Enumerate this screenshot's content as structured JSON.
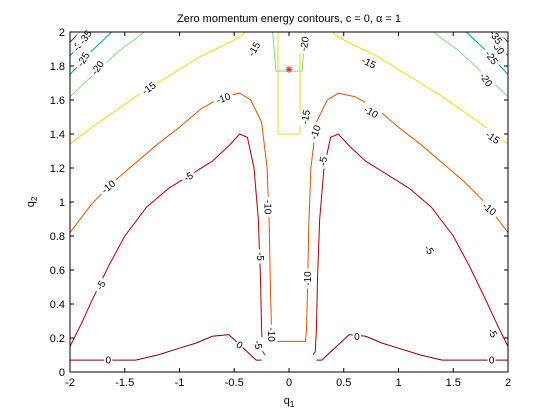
{
  "chart_data": {
    "type": "line",
    "title": "Zero momentum energy contours, c = 0, α = 1",
    "xlabel": "q1",
    "ylabel": "q2",
    "xlim": [
      -2,
      2
    ],
    "ylim": [
      0,
      2
    ],
    "xticks": [
      "-2",
      "-1.5",
      "-1",
      "-0.5",
      "0",
      "0.5",
      "1",
      "1.5",
      "2"
    ],
    "yticks": [
      "0",
      "0.2",
      "0.4",
      "0.6",
      "0.8",
      "1",
      "1.2",
      "1.4",
      "1.6",
      "1.8",
      "2"
    ],
    "grid": false,
    "legend": "none",
    "marker": {
      "x": 0.0,
      "y": 1.78,
      "symbol": "*",
      "color": "#e0302a"
    },
    "series": [
      {
        "level": "0",
        "color": "#7f0000",
        "paths": [
          [
            [
              -2.0,
              0.07
            ],
            [
              -1.4,
              0.07
            ],
            [
              -1.2,
              0.1
            ],
            [
              -1.0,
              0.14
            ],
            [
              -0.85,
              0.17
            ],
            [
              -0.7,
              0.21
            ],
            [
              -0.55,
              0.22
            ],
            [
              -0.45,
              0.16
            ],
            [
              -0.35,
              0.1
            ],
            [
              -0.3,
              0.07
            ],
            [
              -0.25,
              0.07
            ]
          ],
          [
            [
              0.25,
              0.07
            ],
            [
              0.3,
              0.07
            ],
            [
              0.35,
              0.1
            ],
            [
              0.45,
              0.16
            ],
            [
              0.55,
              0.22
            ],
            [
              0.7,
              0.21
            ],
            [
              0.85,
              0.17
            ],
            [
              1.0,
              0.14
            ],
            [
              1.2,
              0.1
            ],
            [
              1.4,
              0.07
            ],
            [
              2.0,
              0.07
            ]
          ]
        ],
        "labels": [
          {
            "text": "0",
            "x": -1.65,
            "y": 0.07,
            "angle": 0
          },
          {
            "text": "0",
            "x": -0.45,
            "y": 0.16,
            "angle": 30
          },
          {
            "text": "0",
            "x": 0.62,
            "y": 0.21,
            "angle": 0
          },
          {
            "text": "0",
            "x": 1.85,
            "y": 0.07,
            "angle": 0
          }
        ]
      },
      {
        "level": "-5",
        "color": "#b00000",
        "paths": [
          [
            [
              -2.0,
              0.15
            ],
            [
              -1.9,
              0.28
            ],
            [
              -1.8,
              0.42
            ],
            [
              -1.65,
              0.62
            ],
            [
              -1.5,
              0.8
            ],
            [
              -1.3,
              0.97
            ],
            [
              -1.1,
              1.08
            ],
            [
              -0.9,
              1.16
            ],
            [
              -0.7,
              1.24
            ],
            [
              -0.55,
              1.33
            ],
            [
              -0.45,
              1.4
            ],
            [
              -0.38,
              1.38
            ],
            [
              -0.32,
              1.2
            ],
            [
              -0.28,
              0.9
            ],
            [
              -0.26,
              0.55
            ],
            [
              -0.25,
              0.25
            ],
            [
              -0.24,
              0.12
            ],
            [
              -0.22,
              0.1
            ]
          ],
          [
            [
              0.22,
              0.1
            ],
            [
              0.24,
              0.12
            ],
            [
              0.25,
              0.25
            ],
            [
              0.26,
              0.55
            ],
            [
              0.28,
              0.9
            ],
            [
              0.32,
              1.2
            ],
            [
              0.38,
              1.38
            ],
            [
              0.45,
              1.4
            ],
            [
              0.55,
              1.33
            ],
            [
              0.7,
              1.24
            ],
            [
              0.9,
              1.16
            ],
            [
              1.1,
              1.08
            ],
            [
              1.3,
              0.97
            ],
            [
              1.5,
              0.8
            ],
            [
              1.65,
              0.62
            ],
            [
              1.8,
              0.42
            ],
            [
              1.9,
              0.28
            ],
            [
              2.0,
              0.15
            ]
          ]
        ],
        "labels": [
          {
            "text": "-5",
            "x": -1.72,
            "y": 0.51,
            "angle": -60
          },
          {
            "text": "-5",
            "x": -0.92,
            "y": 1.15,
            "angle": -30
          },
          {
            "text": "-5",
            "x": -0.26,
            "y": 0.68,
            "angle": 90
          },
          {
            "text": "-5",
            "x": -0.28,
            "y": 0.16,
            "angle": 80
          },
          {
            "text": "-5",
            "x": 0.31,
            "y": 1.24,
            "angle": -80
          },
          {
            "text": "-5",
            "x": 1.28,
            "y": 0.72,
            "angle": 55
          },
          {
            "text": "-5",
            "x": 1.86,
            "y": 0.23,
            "angle": 60
          }
        ]
      },
      {
        "level": "-10",
        "color": "#dd5500",
        "paths": [
          [
            [
              -2.0,
              0.82
            ],
            [
              -1.8,
              0.99
            ],
            [
              -1.6,
              1.12
            ],
            [
              -1.4,
              1.23
            ],
            [
              -1.2,
              1.34
            ],
            [
              -1.0,
              1.44
            ],
            [
              -0.8,
              1.55
            ],
            [
              -0.6,
              1.62
            ],
            [
              -0.45,
              1.64
            ],
            [
              -0.35,
              1.6
            ],
            [
              -0.25,
              1.47
            ],
            [
              -0.2,
              1.2
            ],
            [
              -0.18,
              0.85
            ],
            [
              -0.17,
              0.5
            ],
            [
              -0.16,
              0.25
            ],
            [
              -0.15,
              0.18
            ],
            [
              0.15,
              0.18
            ],
            [
              0.16,
              0.25
            ],
            [
              0.17,
              0.5
            ],
            [
              0.18,
              0.85
            ],
            [
              0.2,
              1.2
            ],
            [
              0.25,
              1.47
            ],
            [
              0.35,
              1.6
            ],
            [
              0.45,
              1.64
            ],
            [
              0.6,
              1.62
            ],
            [
              0.8,
              1.55
            ],
            [
              1.0,
              1.44
            ],
            [
              1.2,
              1.34
            ],
            [
              1.4,
              1.23
            ],
            [
              1.6,
              1.12
            ],
            [
              1.8,
              0.99
            ],
            [
              2.0,
              0.82
            ]
          ]
        ],
        "labels": [
          {
            "text": "-10",
            "x": -1.65,
            "y": 1.09,
            "angle": -40
          },
          {
            "text": "-10",
            "x": -0.6,
            "y": 1.61,
            "angle": -20
          },
          {
            "text": "-10",
            "x": -0.19,
            "y": 0.97,
            "angle": 90
          },
          {
            "text": "-10",
            "x": -0.16,
            "y": 0.22,
            "angle": 90
          },
          {
            "text": "-10",
            "x": 0.17,
            "y": 0.55,
            "angle": -90
          },
          {
            "text": "-10",
            "x": 0.24,
            "y": 1.41,
            "angle": -70
          },
          {
            "text": "-10",
            "x": 0.75,
            "y": 1.53,
            "angle": 30
          },
          {
            "text": "-10",
            "x": 1.83,
            "y": 0.96,
            "angle": 40
          }
        ]
      },
      {
        "level": "-15",
        "color": "#e8e000",
        "paths": [
          [
            [
              -2.0,
              1.34
            ],
            [
              -1.8,
              1.44
            ],
            [
              -1.6,
              1.53
            ],
            [
              -1.4,
              1.62
            ],
            [
              -1.2,
              1.7
            ],
            [
              -1.0,
              1.78
            ],
            [
              -0.8,
              1.86
            ],
            [
              -0.6,
              1.92
            ],
            [
              -0.45,
              1.97
            ],
            [
              -0.4,
              2.0
            ]
          ],
          [
            [
              -0.1,
              2.0
            ],
            [
              -0.1,
              1.6
            ],
            [
              -0.1,
              1.4
            ],
            [
              0.1,
              1.4
            ],
            [
              0.1,
              1.6
            ],
            [
              0.1,
              2.0
            ]
          ],
          [
            [
              0.4,
              2.0
            ],
            [
              0.45,
              1.97
            ],
            [
              0.6,
              1.92
            ],
            [
              0.8,
              1.86
            ],
            [
              1.0,
              1.78
            ],
            [
              1.2,
              1.7
            ],
            [
              1.4,
              1.62
            ],
            [
              1.6,
              1.53
            ],
            [
              1.8,
              1.44
            ],
            [
              2.0,
              1.34
            ]
          ]
        ],
        "labels": [
          {
            "text": "-15",
            "x": -1.28,
            "y": 1.67,
            "angle": -35
          },
          {
            "text": "-15",
            "x": -0.32,
            "y": 1.9,
            "angle": -60
          },
          {
            "text": "-15",
            "x": 0.15,
            "y": 1.5,
            "angle": -80
          },
          {
            "text": "-15",
            "x": 0.73,
            "y": 1.82,
            "angle": 25
          },
          {
            "text": "-15",
            "x": 1.86,
            "y": 1.38,
            "angle": 35
          }
        ]
      },
      {
        "level": "-20",
        "color": "#80e080",
        "paths": [
          [
            [
              -2.0,
              1.62
            ],
            [
              -1.85,
              1.71
            ],
            [
              -1.7,
              1.8
            ],
            [
              -1.55,
              1.89
            ],
            [
              -1.4,
              1.96
            ],
            [
              -1.32,
              2.0
            ]
          ],
          [
            [
              -0.15,
              2.0
            ],
            [
              -0.13,
              1.85
            ],
            [
              -0.12,
              1.77
            ],
            [
              0.12,
              1.77
            ],
            [
              0.13,
              1.85
            ],
            [
              0.15,
              2.0
            ]
          ],
          [
            [
              1.32,
              2.0
            ],
            [
              1.4,
              1.96
            ],
            [
              1.55,
              1.89
            ],
            [
              1.7,
              1.8
            ],
            [
              1.85,
              1.71
            ],
            [
              2.0,
              1.62
            ]
          ]
        ],
        "labels": [
          {
            "text": "-20",
            "x": -1.75,
            "y": 1.79,
            "angle": -55
          },
          {
            "text": "-20",
            "x": 0.14,
            "y": 1.93,
            "angle": -80
          },
          {
            "text": "-20",
            "x": 1.8,
            "y": 1.72,
            "angle": 55
          }
        ]
      },
      {
        "level": "-25",
        "color": "#00aaaa",
        "paths": [
          [
            [
              -2.0,
              1.75
            ],
            [
              -1.9,
              1.82
            ],
            [
              -1.8,
              1.89
            ],
            [
              -1.7,
              1.95
            ],
            [
              -1.62,
              2.0
            ]
          ],
          [
            [
              1.62,
              2.0
            ],
            [
              1.7,
              1.95
            ],
            [
              1.8,
              1.89
            ],
            [
              1.9,
              1.82
            ],
            [
              2.0,
              1.75
            ]
          ]
        ],
        "labels": [
          {
            "text": "-25",
            "x": -1.88,
            "y": 1.84,
            "angle": -60
          },
          {
            "text": "-25",
            "x": 1.85,
            "y": 1.85,
            "angle": 55
          }
        ]
      },
      {
        "level": "-30",
        "color": "#1177ee",
        "paths": [
          [
            [
              -2.0,
              1.86
            ],
            [
              -1.93,
              1.91
            ],
            [
              -1.85,
              1.96
            ],
            [
              -1.8,
              2.0
            ]
          ],
          [
            [
              1.8,
              2.0
            ],
            [
              1.85,
              1.96
            ],
            [
              1.93,
              1.91
            ],
            [
              2.0,
              1.86
            ]
          ]
        ],
        "labels": [
          {
            "text": "-30",
            "x": -1.92,
            "y": 1.93,
            "angle": -60
          },
          {
            "text": "-30",
            "x": 1.91,
            "y": 1.91,
            "angle": 55
          }
        ]
      },
      {
        "level": "-35",
        "color": "#1a2aa8",
        "paths": [
          [
            [
              -2.0,
              1.94
            ],
            [
              -1.94,
              1.98
            ],
            [
              -1.91,
              2.0
            ]
          ],
          [
            [
              1.91,
              2.0
            ],
            [
              1.94,
              1.98
            ],
            [
              2.0,
              1.94
            ]
          ]
        ],
        "labels": [
          {
            "text": "-35",
            "x": -1.86,
            "y": 1.97,
            "angle": -55
          },
          {
            "text": "-35",
            "x": 1.89,
            "y": 1.97,
            "angle": 55
          }
        ]
      }
    ]
  }
}
